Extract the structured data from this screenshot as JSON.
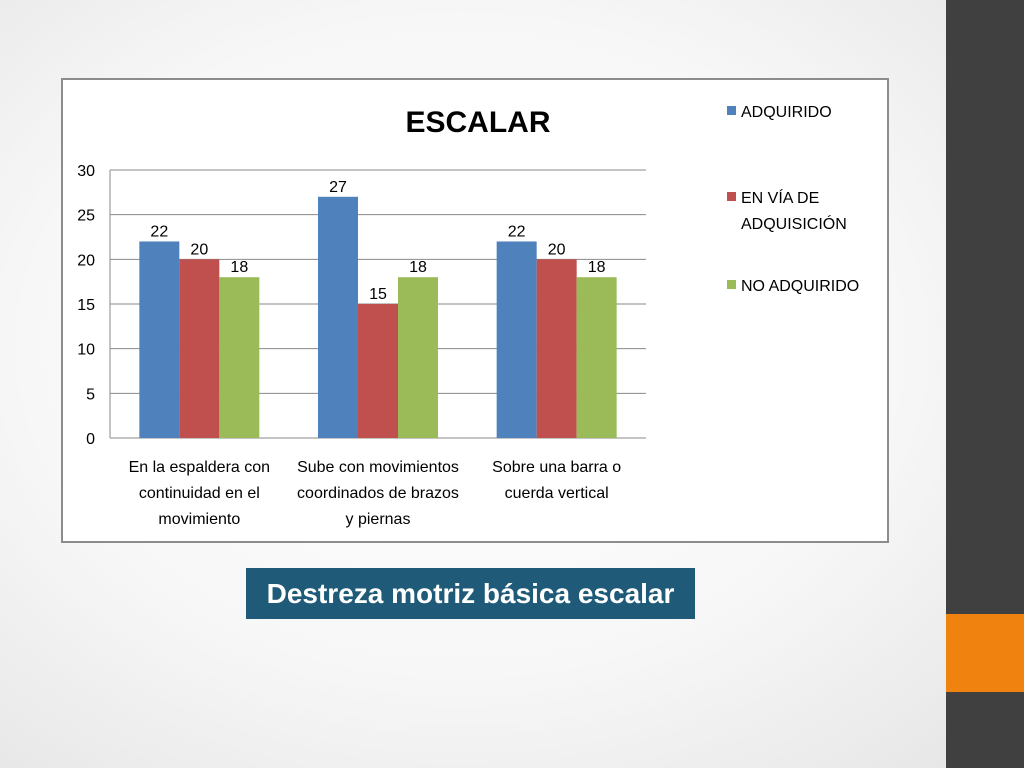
{
  "slide": {
    "caption": "Destreza motriz básica escalar",
    "colors": {
      "sidebar": "#404040",
      "accent": "#f0820f",
      "caption_bg": "#1f5b79"
    }
  },
  "chart_data": {
    "type": "bar",
    "title": "ESCALAR",
    "categories": [
      [
        "En la espaldera con",
        "continuidad en el",
        "movimiento"
      ],
      [
        "Sube con movimientos",
        "coordinados de brazos",
        "y piernas"
      ],
      [
        "Sobre una barra o",
        "cuerda vertical"
      ]
    ],
    "series": [
      {
        "name": "ADQUIRIDO",
        "values": [
          22,
          27,
          22
        ],
        "color": "#4f81bd"
      },
      {
        "name": "EN VÍA DE ADQUISICIÓN",
        "values": [
          20,
          15,
          20
        ],
        "color": "#c0504d"
      },
      {
        "name": "NO ADQUIRIDO",
        "values": [
          18,
          18,
          18
        ],
        "color": "#9bbb59"
      }
    ],
    "ylim": [
      0,
      30
    ],
    "yticks": [
      0,
      5,
      10,
      15,
      20,
      25,
      30
    ],
    "grid": true,
    "data_labels": true,
    "legend_position": "right",
    "xlabel": "",
    "ylabel": ""
  }
}
